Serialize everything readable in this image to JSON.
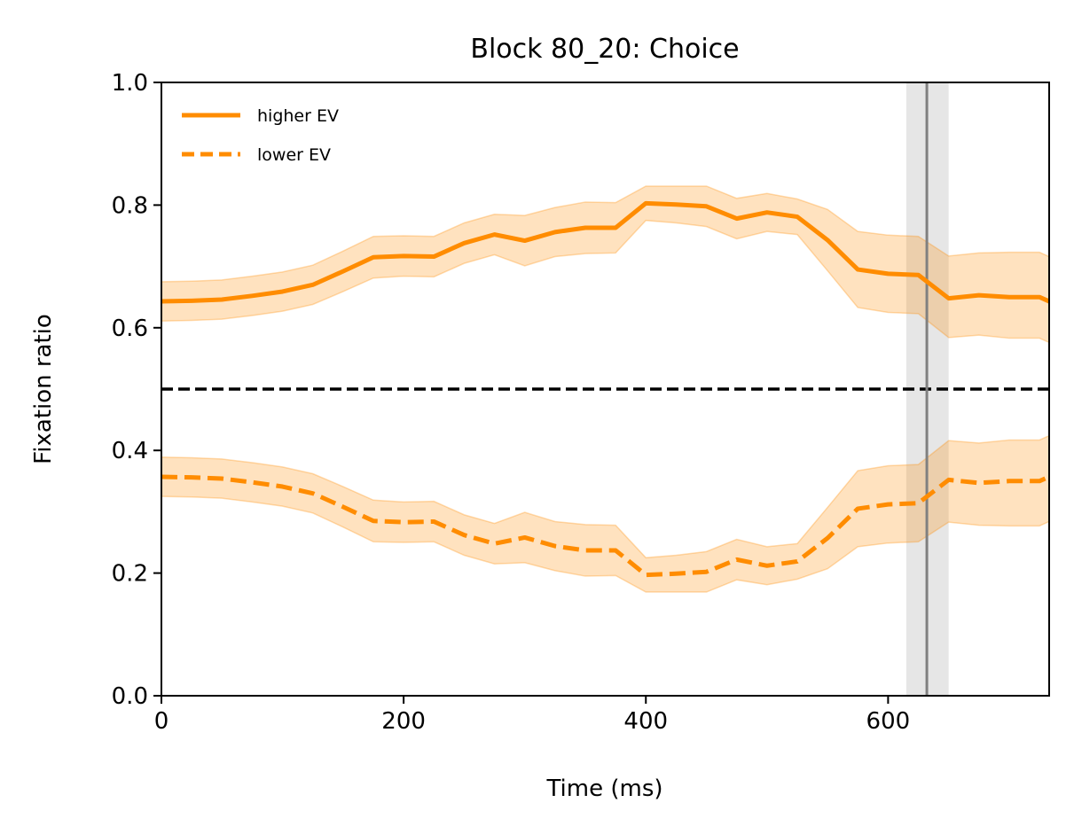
{
  "chart_data": {
    "type": "line",
    "title": "Block 80_20: Choice",
    "xlabel": "Time (ms)",
    "ylabel": "Fixation ratio",
    "xlim": [
      0,
      733
    ],
    "ylim": [
      0,
      1
    ],
    "xticks": [
      0,
      200,
      400,
      600
    ],
    "yticks": [
      0.0,
      0.2,
      0.4,
      0.6,
      0.8,
      1.0
    ],
    "xtick_labels": [
      "0",
      "200",
      "400",
      "600"
    ],
    "ytick_labels": [
      "0.0",
      "0.2",
      "0.4",
      "0.6",
      "0.8",
      "1.0"
    ],
    "grid": false,
    "legend_position": "top-left",
    "reference_line": {
      "y": 0.5,
      "style": "dashed",
      "color": "#000000"
    },
    "vertical_marker": {
      "x": 632,
      "band": [
        615,
        650
      ],
      "color": "#808080"
    },
    "x": [
      0,
      25,
      50,
      75,
      100,
      125,
      150,
      175,
      200,
      225,
      250,
      275,
      300,
      325,
      350,
      375,
      400,
      425,
      450,
      475,
      500,
      525,
      550,
      575,
      600,
      625,
      650,
      675,
      700,
      725,
      733
    ],
    "series": [
      {
        "name": "higher EV",
        "style": "solid",
        "color": "#ff8c00",
        "values": [
          0.643,
          0.644,
          0.646,
          0.652,
          0.659,
          0.67,
          0.692,
          0.715,
          0.717,
          0.716,
          0.738,
          0.752,
          0.742,
          0.756,
          0.763,
          0.763,
          0.803,
          0.801,
          0.798,
          0.778,
          0.788,
          0.781,
          0.743,
          0.695,
          0.688,
          0.686,
          0.648,
          0.653,
          0.65,
          0.65,
          0.643
        ],
        "lower": [
          0.611,
          0.612,
          0.614,
          0.62,
          0.627,
          0.638,
          0.659,
          0.681,
          0.684,
          0.683,
          0.705,
          0.719,
          0.701,
          0.716,
          0.721,
          0.722,
          0.775,
          0.771,
          0.765,
          0.745,
          0.757,
          0.752,
          0.693,
          0.633,
          0.625,
          0.623,
          0.584,
          0.588,
          0.583,
          0.583,
          0.576
        ],
        "upper": [
          0.675,
          0.676,
          0.678,
          0.684,
          0.691,
          0.702,
          0.725,
          0.749,
          0.75,
          0.749,
          0.771,
          0.785,
          0.783,
          0.796,
          0.805,
          0.804,
          0.831,
          0.831,
          0.831,
          0.811,
          0.819,
          0.81,
          0.793,
          0.757,
          0.751,
          0.749,
          0.717,
          0.722,
          0.723,
          0.723,
          0.716
        ]
      },
      {
        "name": "lower EV",
        "style": "dashed",
        "color": "#ff8c00",
        "values": [
          0.357,
          0.356,
          0.354,
          0.348,
          0.341,
          0.33,
          0.308,
          0.285,
          0.283,
          0.284,
          0.262,
          0.248,
          0.258,
          0.244,
          0.237,
          0.237,
          0.197,
          0.199,
          0.202,
          0.222,
          0.212,
          0.219,
          0.257,
          0.305,
          0.312,
          0.314,
          0.352,
          0.347,
          0.35,
          0.35,
          0.357
        ],
        "lower": [
          0.325,
          0.324,
          0.322,
          0.316,
          0.309,
          0.298,
          0.275,
          0.251,
          0.25,
          0.251,
          0.229,
          0.215,
          0.217,
          0.204,
          0.195,
          0.196,
          0.169,
          0.169,
          0.169,
          0.189,
          0.181,
          0.19,
          0.207,
          0.243,
          0.249,
          0.251,
          0.283,
          0.278,
          0.277,
          0.277,
          0.284
        ],
        "upper": [
          0.389,
          0.388,
          0.386,
          0.38,
          0.373,
          0.362,
          0.341,
          0.319,
          0.316,
          0.317,
          0.295,
          0.281,
          0.299,
          0.284,
          0.279,
          0.278,
          0.225,
          0.229,
          0.235,
          0.255,
          0.243,
          0.248,
          0.307,
          0.367,
          0.375,
          0.377,
          0.416,
          0.412,
          0.417,
          0.417,
          0.424
        ]
      }
    ]
  }
}
